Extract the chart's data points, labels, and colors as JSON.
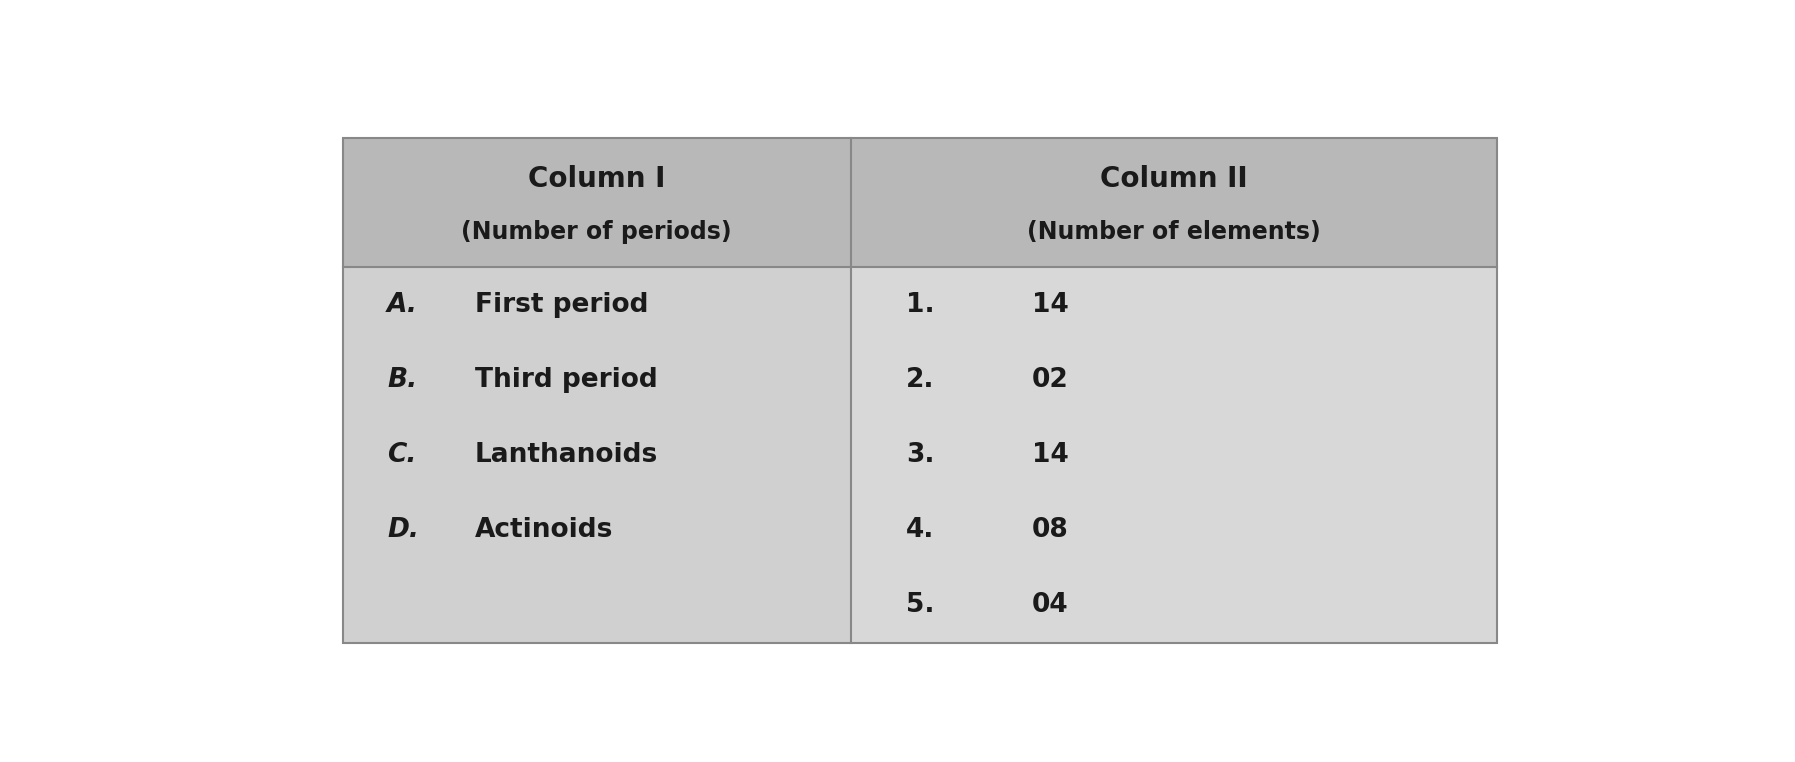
{
  "bg_color": "#ffffff",
  "table_body_bg": "#d8d8d8",
  "table_body_col1_bg": "#d0d0d0",
  "header_bg": "#b8b8b8",
  "col1_header_line1": "Column I",
  "col1_header_line2": "(Number of periods)",
  "col2_header_line1": "Column II",
  "col2_header_line2": "(Number of elements)",
  "col1_items": [
    [
      "A.",
      "First period"
    ],
    [
      "B.",
      "Third period"
    ],
    [
      "C.",
      "Lanthanoids"
    ],
    [
      "D.",
      "Actinoids"
    ]
  ],
  "col2_items": [
    [
      "1.",
      "14"
    ],
    [
      "2.",
      "02"
    ],
    [
      "3.",
      "14"
    ],
    [
      "4.",
      "08"
    ],
    [
      "5.",
      "04"
    ]
  ],
  "figsize": [
    17.95,
    7.62
  ],
  "dpi": 100
}
